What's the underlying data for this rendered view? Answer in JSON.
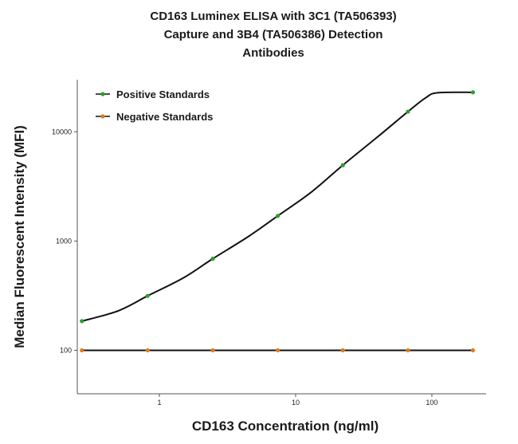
{
  "chart_data": {
    "type": "line",
    "title_lines": [
      "CD163 Luminex ELISA with 3C1 (TA506393)",
      "Capture and 3B4 (TA506386) Detection",
      "Antibodies"
    ],
    "xlabel": "CD163 Concentration (ng/ml)",
    "ylabel": "Median Fluorescent Intensity (MFI)",
    "x_scale": "log",
    "y_scale": "log",
    "xlim": [
      0.25,
      250
    ],
    "ylim": [
      40,
      30000
    ],
    "x_ticks": [
      1,
      10,
      100
    ],
    "x_tick_labels": [
      "1",
      "10",
      "100"
    ],
    "y_ticks": [
      100,
      1000,
      10000
    ],
    "y_tick_labels": [
      "100",
      "1000",
      "10000"
    ],
    "grid": false,
    "legend_position": "top-left",
    "series": [
      {
        "name": "Positive Standards",
        "color": "#2ca02c",
        "x": [
          0.27,
          0.82,
          2.47,
          7.4,
          22.2,
          66.7,
          200
        ],
        "y": [
          185,
          315,
          690,
          1700,
          4950,
          15300,
          23000
        ]
      },
      {
        "name": "Negative Standards",
        "color": "#e07b1c",
        "x": [
          0.27,
          0.82,
          2.47,
          7.4,
          22.2,
          66.7,
          200
        ],
        "y": [
          100,
          100,
          100,
          100,
          100,
          100,
          100
        ]
      }
    ],
    "fit_curves": [
      {
        "series": "Positive Standards",
        "color": "#111111",
        "x": [
          0.27,
          0.5,
          0.82,
          1.5,
          2.47,
          4.5,
          7.4,
          13,
          22.2,
          40,
          66.7,
          90,
          110,
          200
        ],
        "y": [
          185,
          230,
          315,
          460,
          690,
          1100,
          1700,
          2800,
          4950,
          9000,
          15300,
          20500,
          22800,
          23000
        ]
      },
      {
        "series": "Negative Standards",
        "color": "#111111",
        "x": [
          0.27,
          200
        ],
        "y": [
          100,
          100
        ]
      }
    ]
  }
}
